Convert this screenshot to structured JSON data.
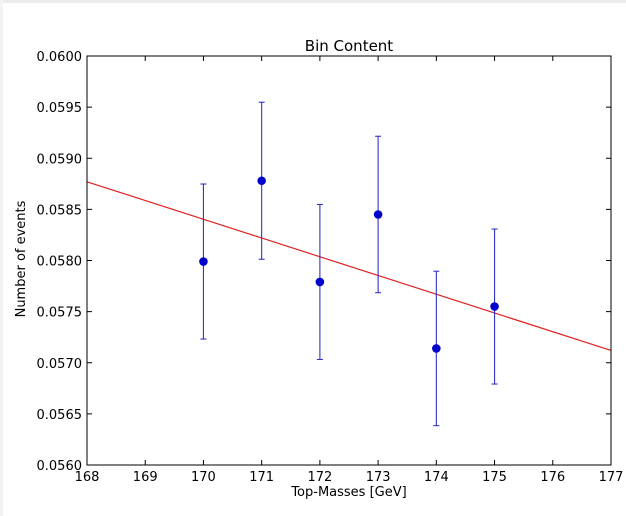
{
  "chart_data": {
    "type": "scatter",
    "title": "Bin Content",
    "xlabel": "Top-Masses [GeV]",
    "ylabel": "Number of events",
    "xlim": [
      168,
      177
    ],
    "ylim": [
      0.056,
      0.06
    ],
    "xticks": [
      "168",
      "169",
      "170",
      "171",
      "172",
      "173",
      "174",
      "175",
      "176",
      "177"
    ],
    "yticks": [
      "0.0560",
      "0.0565",
      "0.0570",
      "0.0575",
      "0.0580",
      "0.0585",
      "0.0590",
      "0.0595",
      "0.0600"
    ],
    "grid": false,
    "points": [
      {
        "x": 170,
        "y": 0.05799,
        "err": 0.000758
      },
      {
        "x": 171,
        "y": 0.05878,
        "err": 0.000768
      },
      {
        "x": 172,
        "y": 0.05779,
        "err": 0.000758
      },
      {
        "x": 173,
        "y": 0.05845,
        "err": 0.000765
      },
      {
        "x": 174,
        "y": 0.05714,
        "err": 0.000755
      },
      {
        "x": 175,
        "y": 0.05755,
        "err": 0.000758
      }
    ],
    "fit_line": {
      "x": [
        168,
        177
      ],
      "y": [
        0.05877,
        0.05712
      ]
    },
    "colors": {
      "points": "#0000cc",
      "errorbars": "#3333cc",
      "fit": "#dd2222",
      "axes": "#000000"
    }
  }
}
